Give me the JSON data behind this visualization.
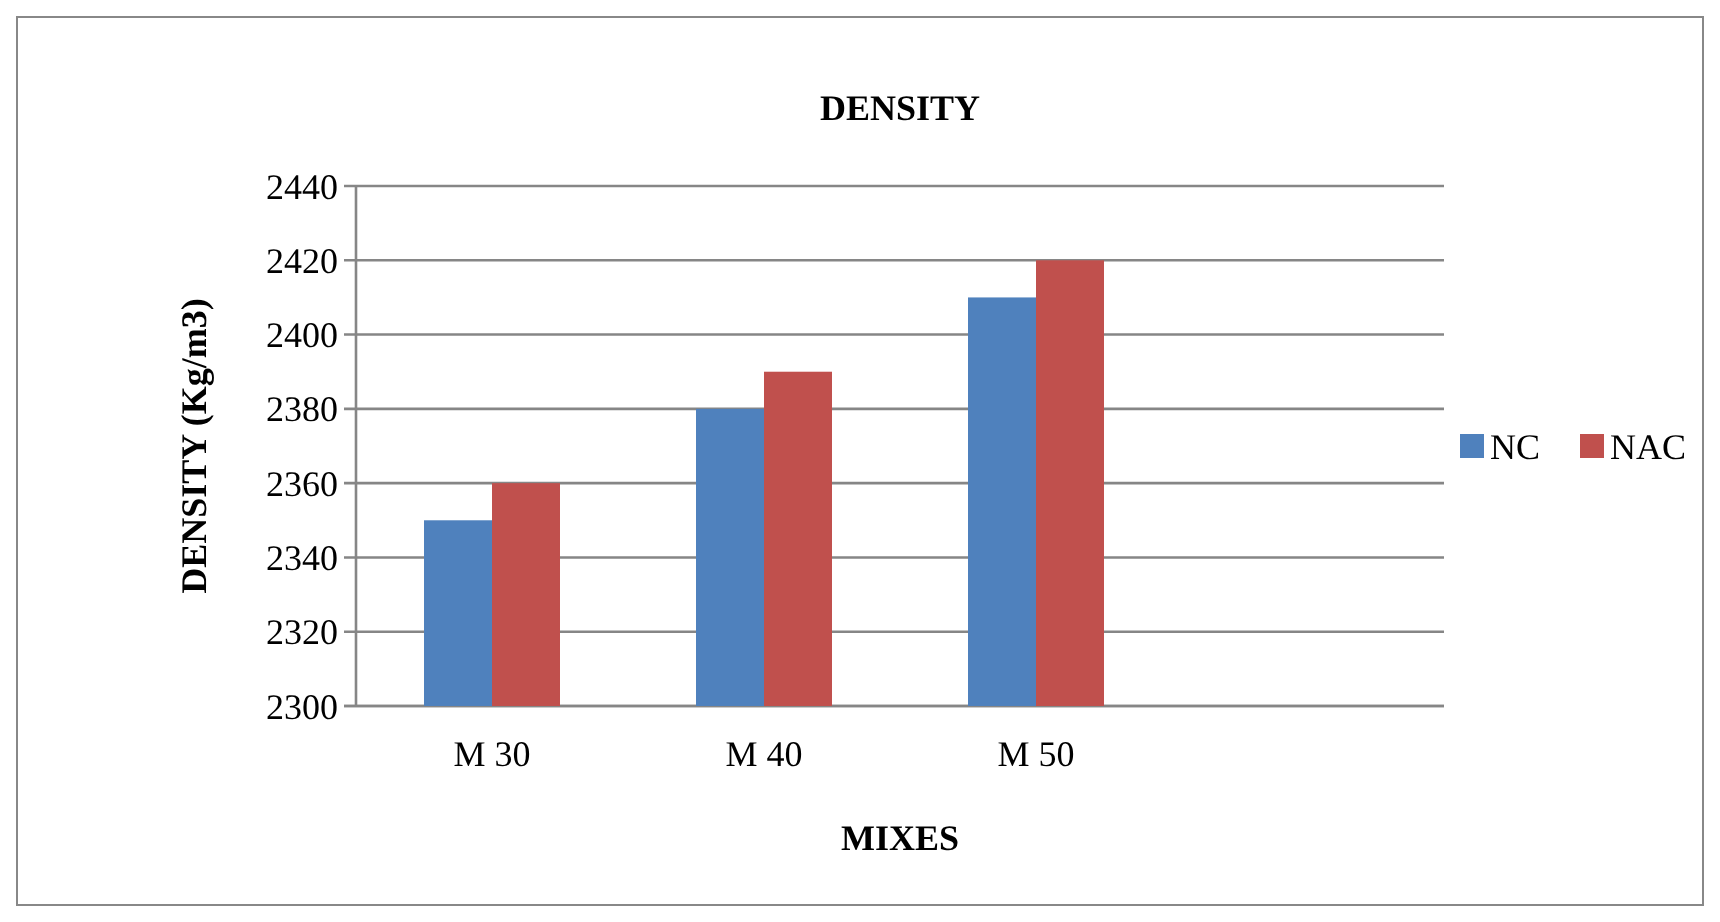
{
  "chart_data": {
    "type": "bar",
    "title": "DENSITY",
    "xlabel": "MIXES",
    "ylabel": "DENSITY (Kg/m3)",
    "categories": [
      "M 30",
      "M 40",
      "M 50",
      null
    ],
    "series": [
      {
        "name": "NC",
        "color": "#4f81bd",
        "values": [
          2350,
          2380,
          2410,
          null
        ]
      },
      {
        "name": "NAC",
        "color": "#c0504d",
        "values": [
          2360,
          2390,
          2420,
          null
        ]
      }
    ],
    "ylim": [
      2300,
      2440
    ],
    "yticks": [
      2300,
      2320,
      2340,
      2360,
      2380,
      2400,
      2420,
      2440
    ],
    "grid": "y",
    "legend": "right"
  }
}
